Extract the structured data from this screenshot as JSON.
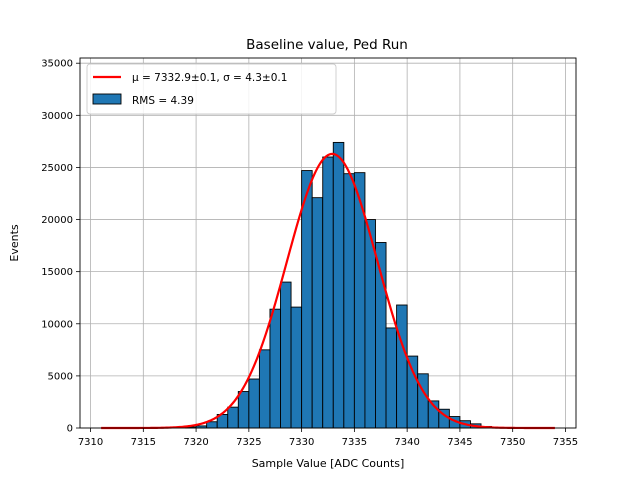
{
  "chart_data": {
    "type": "bar",
    "title": "Baseline value, Ped Run",
    "xlabel": "Sample Value [ADC Counts]",
    "ylabel": "Events",
    "xlim": [
      7309,
      7356
    ],
    "ylim": [
      0,
      35500
    ],
    "xticks": [
      7310,
      7315,
      7320,
      7325,
      7330,
      7335,
      7340,
      7345,
      7350,
      7355
    ],
    "yticks": [
      0,
      5000,
      10000,
      15000,
      20000,
      25000,
      30000,
      35000
    ],
    "grid": true,
    "legend_position": "top-left",
    "bar_color": "#1f77b4",
    "fit_color": "#ff0000",
    "histogram": {
      "name": "RMS = 4.39",
      "bin_width": 1.0,
      "bins": [
        {
          "x0": 7319,
          "value": 100
        },
        {
          "x0": 7320,
          "value": 200
        },
        {
          "x0": 7321,
          "value": 600
        },
        {
          "x0": 7322,
          "value": 1300
        },
        {
          "x0": 7323,
          "value": 2000
        },
        {
          "x0": 7324,
          "value": 3500
        },
        {
          "x0": 7325,
          "value": 4700
        },
        {
          "x0": 7326,
          "value": 7500
        },
        {
          "x0": 7327,
          "value": 11400
        },
        {
          "x0": 7328,
          "value": 14000
        },
        {
          "x0": 7329,
          "value": 11600
        },
        {
          "x0": 7330,
          "value": 24700
        },
        {
          "x0": 7331,
          "value": 22100
        },
        {
          "x0": 7332,
          "value": 26000
        },
        {
          "x0": 7333,
          "value": 27400
        },
        {
          "x0": 7334,
          "value": 24400
        },
        {
          "x0": 7335,
          "value": 24500
        },
        {
          "x0": 7336,
          "value": 20000
        },
        {
          "x0": 7337,
          "value": 17800
        },
        {
          "x0": 7338,
          "value": 9600
        },
        {
          "x0": 7339,
          "value": 11800
        },
        {
          "x0": 7340,
          "value": 6900
        },
        {
          "x0": 7341,
          "value": 5200
        },
        {
          "x0": 7342,
          "value": 2600
        },
        {
          "x0": 7343,
          "value": 1800
        },
        {
          "x0": 7344,
          "value": 1100
        },
        {
          "x0": 7345,
          "value": 700
        },
        {
          "x0": 7346,
          "value": 400
        },
        {
          "x0": 7347,
          "value": 150
        }
      ]
    },
    "fit": {
      "name": "$\\mu = 7332.9\\pm0.1$, $\\sigma = 4.3\\pm0.1$",
      "legend_label": "μ = 7332.9±0.1, σ = 4.3±0.1",
      "kind": "gaussian",
      "mu": 7332.9,
      "sigma": 4.3,
      "amplitude": 26300,
      "x_range": [
        7311,
        7354
      ]
    }
  }
}
